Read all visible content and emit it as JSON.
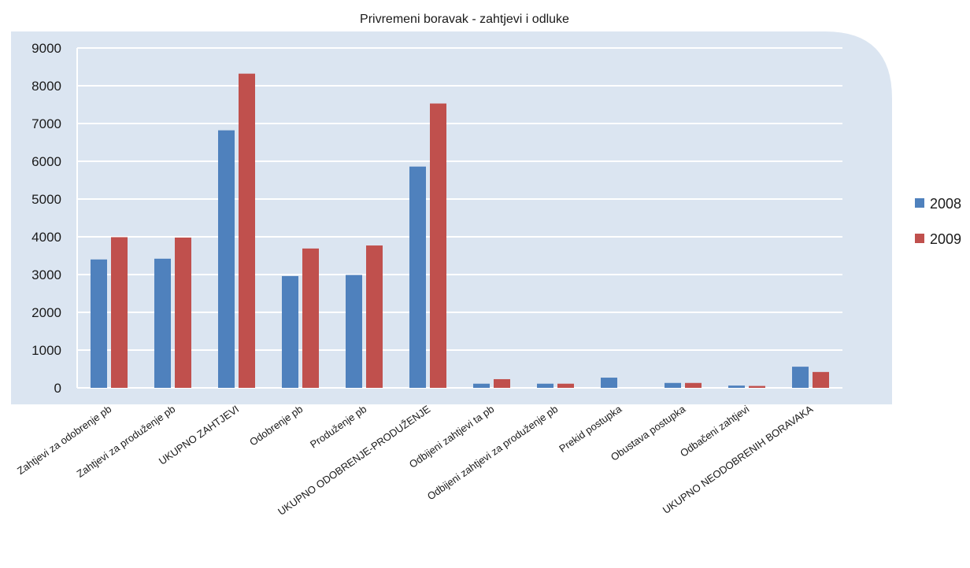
{
  "chart_data": {
    "type": "bar",
    "title": "Privremeni boravak - zahtjevi i odluke",
    "xlabel": "",
    "ylabel": "",
    "ylim": [
      0,
      9000
    ],
    "yticks": [
      0,
      1000,
      2000,
      3000,
      4000,
      5000,
      6000,
      7000,
      8000,
      9000
    ],
    "grid": true,
    "legend_position": "right",
    "categories": [
      "Zahtjevi za odobrenje pb",
      "Zahtjevi za produženje pb",
      "UKUPNO ZAHTJEVI",
      "Odobrenje pb",
      "Produženje pb",
      "UKUPNO ODOBRENJE-PRODUŽENJE",
      "Odbijeni zahtjevi ta pb",
      "Odbijeni zahtjevi za produženje pb",
      "Prekid postupka",
      "Obustava postupka",
      "Odbačeni zahtjevi",
      "UKUPNO NEODOBRENIH  BORAVAKA"
    ],
    "series": [
      {
        "name": "2008",
        "color": "#4f81bd",
        "values": [
          3400,
          3420,
          6820,
          2960,
          2990,
          5860,
          110,
          110,
          270,
          130,
          60,
          560
        ]
      },
      {
        "name": "2009",
        "color": "#c0504d",
        "values": [
          3990,
          3980,
          8320,
          3690,
          3770,
          7530,
          230,
          110,
          0,
          130,
          50,
          420
        ]
      }
    ]
  }
}
